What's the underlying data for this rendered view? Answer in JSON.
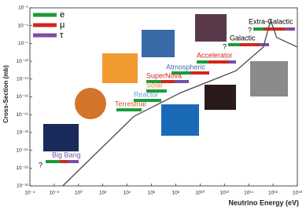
{
  "chart_data": {
    "type": "line",
    "x_label": "Neutrino Energy (eV)",
    "y_label": "Cross-Section (mb)",
    "xscale": "log",
    "yscale": "log",
    "xlim": [
      0.0001,
      1e+18
    ],
    "ylim": [
      1e-31,
      0.1
    ],
    "xticks": [
      {
        "value": 0.0001,
        "label": "10⁻⁴"
      },
      {
        "value": 0.01,
        "label": "10⁻²"
      },
      {
        "value": 1,
        "label": "10⁰"
      },
      {
        "value": 100.0,
        "label": "10²"
      },
      {
        "value": 10000.0,
        "label": "10⁴"
      },
      {
        "value": 1000000.0,
        "label": "10⁶"
      },
      {
        "value": 100000000.0,
        "label": "10⁸"
      },
      {
        "value": 10000000000.0,
        "label": "10¹⁰"
      },
      {
        "value": 1000000000000.0,
        "label": "10¹²"
      },
      {
        "value": 100000000000000.0,
        "label": "10¹⁴"
      },
      {
        "value": 1e+16,
        "label": "10¹⁶"
      },
      {
        "value": 1e+18,
        "label": "10¹⁸"
      }
    ],
    "yticks": [
      {
        "value": 0.1,
        "label": "10⁻¹"
      },
      {
        "value": 0.0001,
        "label": "10⁻⁴"
      },
      {
        "value": 1e-07,
        "label": "10⁻⁷"
      },
      {
        "value": 1e-10,
        "label": "10⁻¹⁰"
      },
      {
        "value": 1e-13,
        "label": "10⁻¹³"
      },
      {
        "value": 1e-16,
        "label": "10⁻¹⁶"
      },
      {
        "value": 1e-19,
        "label": "10⁻¹⁹"
      },
      {
        "value": 1e-22,
        "label": "10⁻²²"
      },
      {
        "value": 1e-25,
        "label": "10⁻²⁵"
      },
      {
        "value": 1e-28,
        "label": "10⁻²⁸"
      },
      {
        "value": 1e-31,
        "label": "10⁻³¹"
      }
    ],
    "x": [
      0.05,
      35000.0,
      250000000.0,
      9000000000000.0,
      1600000000000000.0,
      6300000000000000.0,
      2e+16,
      1e+18
    ],
    "values": [
      1e-31,
      5e-20,
      5e-16,
      2.5e-12,
      2.5e-08,
      0.0008,
      1e-06,
      2.5e-08
    ],
    "color": "#4a4a4a",
    "grid": false,
    "legend_items": [
      {
        "name": "e",
        "color": "#1f9a3b"
      },
      {
        "name": "μ",
        "color": "#d0281c"
      },
      {
        "name": "τ",
        "color": "#7b4ea3"
      }
    ],
    "annotations": [
      "Big Bang",
      "?",
      "Terrestrial",
      "Reactor",
      "Solar",
      "SuperNova",
      "Atmospheric",
      "Accelerator",
      "Galactic",
      "?",
      "Extra-Galactic",
      "?"
    ]
  }
}
